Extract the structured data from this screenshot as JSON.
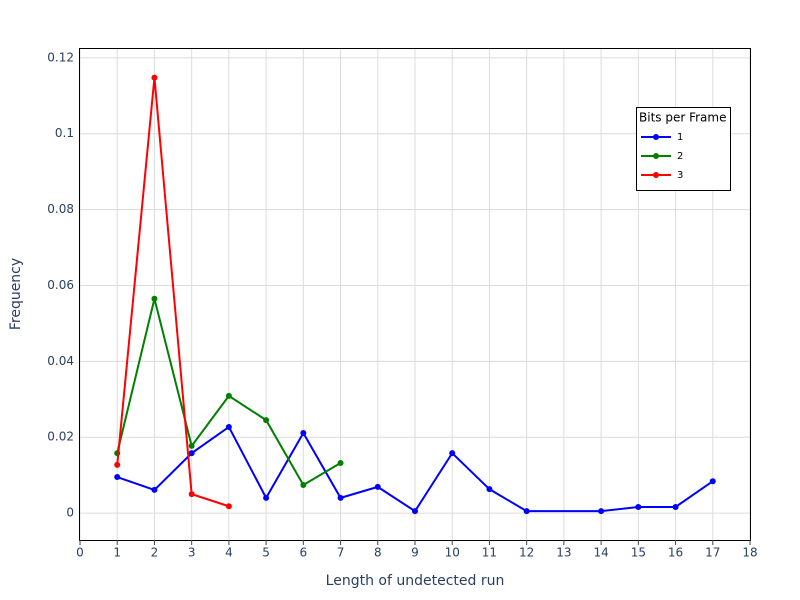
{
  "chart_data": {
    "type": "line",
    "x_label": "Length of undetected run",
    "y_label": "Frequency",
    "legend_title": "Bits per Frame",
    "legend_position": "top-right",
    "grid": true,
    "xlim": [
      0,
      18
    ],
    "xticks": [
      0,
      1,
      2,
      3,
      4,
      5,
      6,
      7,
      8,
      9,
      10,
      11,
      12,
      13,
      14,
      15,
      16,
      17,
      18
    ],
    "ylim": [
      -0.0071,
      0.1226
    ],
    "yticks": [
      0,
      0.02,
      0.04,
      0.06,
      0.08,
      0.1,
      0.12
    ],
    "series": [
      {
        "name": "1",
        "color": "#0000ff",
        "x": [
          1,
          2,
          3,
          4,
          5,
          6,
          7,
          8,
          9,
          10,
          11,
          12,
          14,
          15,
          16,
          17
        ],
        "values": [
          0.0095,
          0.0061,
          0.0158,
          0.0227,
          0.004,
          0.0211,
          0.004,
          0.0069,
          0.0005,
          0.0158,
          0.0063,
          0.0005,
          0.0005,
          0.0016,
          0.0016,
          0.0084
        ]
      },
      {
        "name": "2",
        "color": "#008000",
        "x": [
          1,
          2,
          3,
          4,
          5,
          6,
          7
        ],
        "values": [
          0.0158,
          0.0565,
          0.0177,
          0.0309,
          0.0245,
          0.0074,
          0.0132
        ]
      },
      {
        "name": "3",
        "color": "#ff0000",
        "x": [
          1,
          2,
          3,
          4
        ],
        "values": [
          0.0127,
          0.1148,
          0.005,
          0.0018
        ]
      }
    ]
  }
}
